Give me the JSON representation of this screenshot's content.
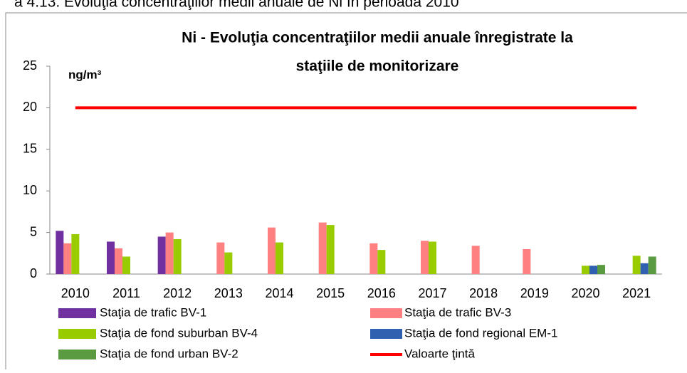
{
  "caption": "a 4.13. Evoluţia concentraţiilor medii anuale de Ni în perioada 2010",
  "chart_data": {
    "type": "bar",
    "title": [
      "Ni -  Evoluţia concentraţiilor medii anuale înregistrate la",
      "staţiile de monitorizare"
    ],
    "y_unit": "ng/m³",
    "categories": [
      "2010",
      "2011",
      "2012",
      "2013",
      "2014",
      "2015",
      "2016",
      "2017",
      "2018",
      "2019",
      "2020",
      "2021"
    ],
    "series": [
      {
        "name": "Staţia de trafic BV-1",
        "color": "#7030a0",
        "values": [
          5.2,
          3.9,
          4.5,
          null,
          null,
          null,
          null,
          null,
          null,
          null,
          null,
          null
        ]
      },
      {
        "name": "Staţia de trafic BV-3",
        "color": "#ff8080",
        "values": [
          3.7,
          3.1,
          5.0,
          3.8,
          5.6,
          6.2,
          3.7,
          4.0,
          3.4,
          3.0,
          null,
          null
        ]
      },
      {
        "name": "Staţia de fond suburban BV-4",
        "color": "#99cc00",
        "values": [
          4.8,
          2.1,
          4.2,
          2.6,
          3.8,
          5.9,
          2.9,
          3.9,
          null,
          null,
          1.0,
          2.2
        ]
      },
      {
        "name": "Staţia de fond regional EM-1",
        "color": "#3060b0",
        "values": [
          null,
          null,
          null,
          null,
          null,
          null,
          null,
          null,
          null,
          null,
          1.0,
          1.3
        ]
      },
      {
        "name": "Staţia de fond urban BV-2",
        "color": "#5a9a40",
        "values": [
          null,
          null,
          null,
          null,
          null,
          null,
          null,
          null,
          null,
          null,
          1.1,
          2.1
        ]
      },
      {
        "name": "Valoarte ţintă",
        "color": "#ff0000",
        "type": "line",
        "values": [
          20,
          20,
          20,
          20,
          20,
          20,
          20,
          20,
          20,
          20,
          20,
          20
        ]
      }
    ],
    "ylim": [
      0,
      25
    ],
    "yticks": [
      0,
      5,
      10,
      15,
      20,
      25
    ]
  }
}
